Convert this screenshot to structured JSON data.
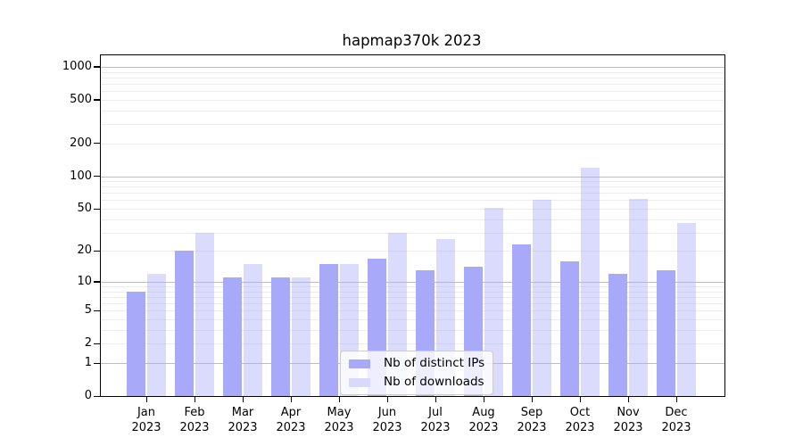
{
  "title": "hapmap370k 2023",
  "legend": {
    "items": [
      {
        "label": "Nb of distinct IPs",
        "color": "#a9a9fa"
      },
      {
        "label": "Nb of downloads",
        "color": "#d9d9fb"
      }
    ]
  },
  "colors": {
    "bar_ips": "#a9a9fa",
    "bar_downloads": "#d9d9fb",
    "grid_major": "#bdbdbd",
    "grid_minor": "#ededed",
    "axis": "#000000",
    "background": "#ffffff"
  },
  "chart_data": {
    "type": "bar",
    "title": "hapmap370k 2023",
    "categories": [
      "Jan 2023",
      "Feb 2023",
      "Mar 2023",
      "Apr 2023",
      "May 2023",
      "Jun 2023",
      "Jul 2023",
      "Aug 2023",
      "Sep 2023",
      "Oct 2023",
      "Nov 2023",
      "Dec 2023"
    ],
    "months": [
      "Jan",
      "Feb",
      "Mar",
      "Apr",
      "May",
      "Jun",
      "Jul",
      "Aug",
      "Sep",
      "Oct",
      "Nov",
      "Dec"
    ],
    "year": "2023",
    "series": [
      {
        "name": "Nb of distinct IPs",
        "color": "#a9a9fa",
        "values": [
          8,
          20,
          11,
          11,
          15,
          17,
          13,
          14,
          23,
          16,
          12,
          13
        ]
      },
      {
        "name": "Nb of downloads",
        "color": "#d9d9fb",
        "values": [
          12,
          30,
          15,
          11,
          15,
          30,
          26,
          51,
          60,
          120,
          62,
          37
        ]
      }
    ],
    "xlabel": "",
    "ylabel": "",
    "yscale": "log1p",
    "ylim": [
      0,
      1274
    ],
    "yticks": [
      0,
      1,
      2,
      5,
      10,
      20,
      50,
      100,
      200,
      500,
      1000
    ],
    "grid": "horizontal, log minor + major decade lines",
    "legend_position": "lower center"
  }
}
